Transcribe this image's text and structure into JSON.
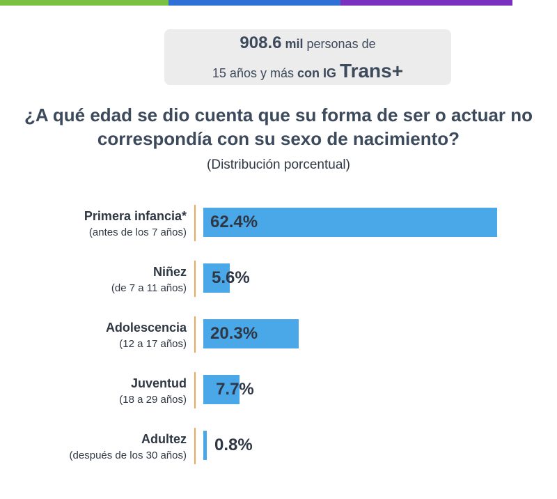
{
  "colors": {
    "top_green": "#7ac143",
    "top_blue": "#2f6fd6",
    "top_purple": "#7b2fbf",
    "bar": "#4aa8e8",
    "separator": "#f2a65a"
  },
  "summary": {
    "number": "908.6",
    "unit": "mil",
    "text1": "personas de",
    "text2": "15 años y más",
    "text3": "con IG",
    "text4": "Trans+"
  },
  "chart_data": {
    "type": "bar",
    "orientation": "horizontal",
    "title": "¿A qué edad se dio cuenta que su forma de ser o actuar no correspondía con su sexo de nacimiento?",
    "subtitle": "(Distribución porcentual)",
    "categories": [
      "Primera infancia*",
      "Niñez",
      "Adolescencia",
      "Juventud",
      "Adultez"
    ],
    "sublabels": [
      "(antes de los 7 años)",
      "(de 7 a 11 años)",
      "(12 a 17 años)",
      "(18 a 29 años)",
      "(después de los 30 años)"
    ],
    "values": [
      62.4,
      5.6,
      20.3,
      7.7,
      0.8
    ],
    "value_labels": [
      "62.4%",
      "5.6%",
      "20.3%",
      "7.7%",
      "0.8%"
    ],
    "unit": "%"
  }
}
